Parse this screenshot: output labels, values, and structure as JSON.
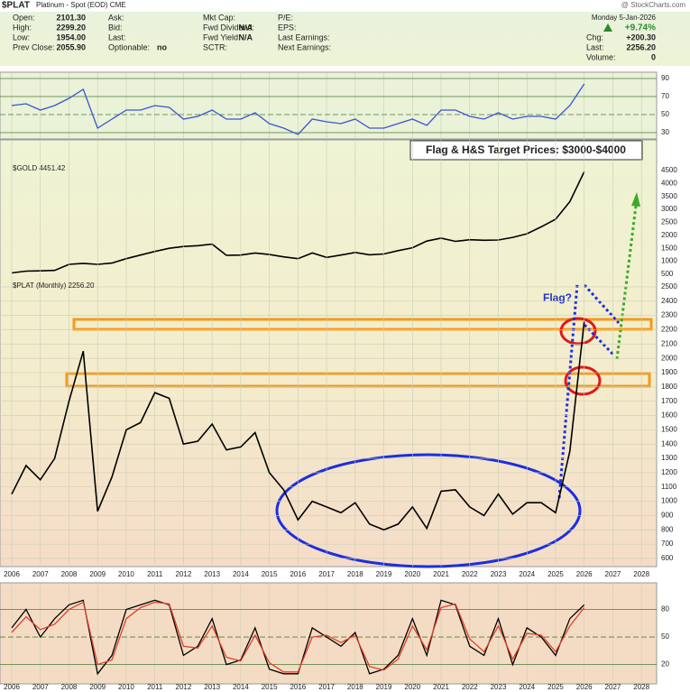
{
  "header": {
    "symbol": "$PLAT",
    "name": "Platinum - Spot (EOD) CME",
    "source": "@ StockCharts.com",
    "date": "Monday  5-Jan-2026",
    "change_pct": "+9.74%",
    "col1": [
      {
        "label": "Open:",
        "value": "2101.30"
      },
      {
        "label": "High:",
        "value": "2299.20"
      },
      {
        "label": "Low:",
        "value": "1954.00"
      },
      {
        "label": "Prev Close:",
        "value": "2055.90"
      }
    ],
    "col2": [
      {
        "label": "Ask:"
      },
      {
        "label": "Bid:"
      },
      {
        "label": "Last:"
      },
      {
        "label": "Optionable:",
        "value": "no"
      }
    ],
    "col3": [
      {
        "label": "Mkt Cap:"
      },
      {
        "label": "Fwd Dividend:",
        "value": "N/A"
      },
      {
        "label": "Fwd Yield:",
        "value": "N/A"
      },
      {
        "label": "SCTR:"
      }
    ],
    "col4": [
      {
        "label": "P/E:"
      },
      {
        "label": "EPS:"
      },
      {
        "label": "Last Earnings:"
      },
      {
        "label": "Next Earnings:"
      }
    ],
    "col5": [
      {
        "label": "Chg:",
        "value": "+200.30"
      },
      {
        "label": "Last:",
        "value": "2256.20"
      },
      {
        "label": "Volume:",
        "value": "0"
      }
    ]
  },
  "chart_data": [
    {
      "type": "line",
      "panel": "rsi",
      "color": "#3a55d0",
      "ylim": [
        25,
        95
      ],
      "yticks": [
        30,
        50,
        70,
        90
      ],
      "xlim": [
        2005.59,
        2028.53
      ],
      "xticks": [
        2006,
        2007,
        2008,
        2009,
        2010,
        2011,
        2012,
        2013,
        2014,
        2015,
        2016,
        2017,
        2018,
        2019,
        2020,
        2021,
        2022,
        2023,
        2024,
        2025,
        2026,
        2027,
        2028
      ],
      "x": [
        2006,
        2006.5,
        2007,
        2007.5,
        2008,
        2008.5,
        2009,
        2009.5,
        2010,
        2010.5,
        2011,
        2011.5,
        2012,
        2012.5,
        2013,
        2013.5,
        2014,
        2014.5,
        2015,
        2015.5,
        2016,
        2016.5,
        2017,
        2017.5,
        2018,
        2018.5,
        2019,
        2019.5,
        2020,
        2020.5,
        2021,
        2021.5,
        2022,
        2022.5,
        2023,
        2023.5,
        2024,
        2024.5,
        2025,
        2025.5,
        2026
      ],
      "values": [
        60,
        62,
        55,
        60,
        68,
        78,
        35,
        45,
        55,
        55,
        60,
        58,
        45,
        48,
        55,
        45,
        45,
        52,
        40,
        35,
        28,
        45,
        42,
        40,
        45,
        35,
        35,
        40,
        45,
        38,
        55,
        55,
        48,
        45,
        52,
        45,
        48,
        48,
        45,
        60,
        84
      ]
    },
    {
      "type": "line",
      "panel": "gold",
      "label": "$GOLD 4451.42",
      "color": "#000000",
      "ylim": [
        290,
        4812
      ],
      "yticks": [
        500,
        1000,
        1500,
        2000,
        2500,
        3000,
        3500,
        4000,
        4500
      ],
      "xlim": [
        2005.59,
        2028.53
      ],
      "x": [
        2006,
        2006.5,
        2007,
        2007.5,
        2008,
        2008.5,
        2009,
        2009.5,
        2010,
        2010.5,
        2011,
        2011.5,
        2012,
        2012.5,
        2013,
        2013.5,
        2014,
        2014.5,
        2015,
        2015.5,
        2016,
        2016.5,
        2017,
        2017.5,
        2018,
        2018.5,
        2019,
        2019.5,
        2020,
        2020.5,
        2021,
        2021.5,
        2022,
        2022.5,
        2023,
        2023.5,
        2024,
        2024.5,
        2025,
        2025.5,
        2026
      ],
      "values": [
        550,
        620,
        630,
        650,
        880,
        920,
        880,
        930,
        1100,
        1240,
        1380,
        1500,
        1570,
        1600,
        1660,
        1230,
        1240,
        1320,
        1260,
        1170,
        1100,
        1320,
        1150,
        1240,
        1340,
        1250,
        1280,
        1410,
        1520,
        1780,
        1890,
        1770,
        1830,
        1810,
        1820,
        1920,
        2060,
        2330,
        2620,
        3300,
        4451.42
      ]
    },
    {
      "type": "line",
      "panel": "plat",
      "label": "$PLAT (Monthly) 2256.20",
      "annotations": [
        "Flag & H&S Target Prices: $3000-$4000",
        "Flag?"
      ],
      "color": "#000000",
      "grid": true,
      "ylim": [
        543,
        2550
      ],
      "yticks": [
        600,
        700,
        800,
        900,
        1000,
        1100,
        1200,
        1300,
        1400,
        1500,
        1600,
        1700,
        1800,
        1900,
        2000,
        2100,
        2200,
        2300,
        2400,
        2500
      ],
      "xlim": [
        2005.59,
        2028.53
      ],
      "xticks": [
        2006,
        2007,
        2008,
        2009,
        2010,
        2011,
        2012,
        2013,
        2014,
        2015,
        2016,
        2017,
        2018,
        2019,
        2020,
        2021,
        2022,
        2023,
        2024,
        2025,
        2026,
        2027,
        2028
      ],
      "x": [
        2006,
        2006.5,
        2007,
        2007.5,
        2008,
        2008.5,
        2009,
        2009.5,
        2010,
        2010.5,
        2011,
        2011.5,
        2012,
        2012.5,
        2013,
        2013.5,
        2014,
        2014.5,
        2015,
        2015.5,
        2016,
        2016.5,
        2017,
        2017.5,
        2018,
        2018.5,
        2019,
        2019.5,
        2020,
        2020.5,
        2021,
        2021.5,
        2022,
        2022.5,
        2023,
        2023.5,
        2024,
        2024.5,
        2025,
        2025.5,
        2026
      ],
      "values": [
        1050,
        1250,
        1150,
        1300,
        1700,
        2050,
        930,
        1170,
        1500,
        1550,
        1760,
        1720,
        1400,
        1420,
        1540,
        1360,
        1380,
        1480,
        1200,
        1080,
        870,
        1000,
        960,
        920,
        990,
        840,
        800,
        840,
        960,
        810,
        1070,
        1080,
        960,
        900,
        1050,
        910,
        990,
        990,
        920,
        1350,
        2256.2
      ]
    },
    {
      "type": "line",
      "panel": "stoch",
      "grid": true,
      "ylim": [
        0,
        107
      ],
      "yticks": [
        20,
        50,
        80
      ],
      "xlim": [
        2005.59,
        2028.53
      ],
      "xticks": [
        2006,
        2007,
        2008,
        2009,
        2010,
        2011,
        2012,
        2013,
        2014,
        2015,
        2016,
        2017,
        2018,
        2019,
        2020,
        2021,
        2022,
        2023,
        2024,
        2025,
        2026,
        2027,
        2028
      ],
      "x": [
        2006,
        2006.5,
        2007,
        2007.5,
        2008,
        2008.5,
        2009,
        2009.5,
        2010,
        2010.5,
        2011,
        2011.5,
        2012,
        2012.5,
        2013,
        2013.5,
        2014,
        2014.5,
        2015,
        2015.5,
        2016,
        2016.5,
        2017,
        2017.5,
        2018,
        2018.5,
        2019,
        2019.5,
        2020,
        2020.5,
        2021,
        2021.5,
        2022,
        2022.5,
        2023,
        2023.5,
        2024,
        2024.5,
        2025,
        2025.5,
        2026
      ],
      "series": [
        {
          "color": "#000000",
          "values": [
            60,
            80,
            50,
            70,
            85,
            90,
            10,
            30,
            80,
            85,
            90,
            85,
            30,
            40,
            70,
            20,
            25,
            60,
            15,
            10,
            10,
            60,
            50,
            40,
            55,
            10,
            15,
            30,
            70,
            30,
            90,
            85,
            40,
            30,
            70,
            20,
            60,
            50,
            30,
            70,
            85
          ]
        },
        {
          "color": "#e0402a",
          "values": [
            55,
            72,
            58,
            64,
            80,
            88,
            20,
            25,
            70,
            82,
            88,
            86,
            40,
            38,
            62,
            28,
            24,
            52,
            22,
            12,
            12,
            50,
            52,
            44,
            52,
            18,
            14,
            26,
            62,
            36,
            82,
            86,
            48,
            34,
            62,
            26,
            54,
            52,
            34,
            62,
            82
          ]
        }
      ]
    }
  ]
}
